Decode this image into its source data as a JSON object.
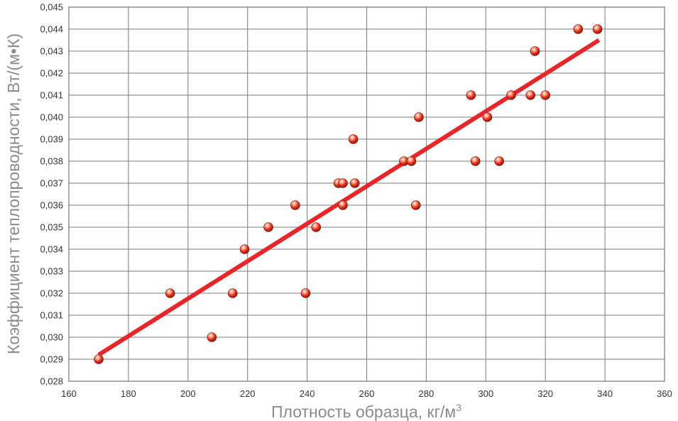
{
  "chart_data": {
    "type": "scatter",
    "xlabel": "Плотность образца, кг/м",
    "xlabel_sup": "3",
    "ylabel": "Коэффициент теплопроводности, Вт/(м•К)",
    "xlim": [
      160,
      360
    ],
    "ylim": [
      0.028,
      0.045
    ],
    "x_ticks": [
      160,
      180,
      200,
      220,
      240,
      260,
      280,
      300,
      320,
      340,
      360
    ],
    "x_tick_labels": [
      "160",
      "180",
      "200",
      "220",
      "240",
      "260",
      "280",
      "300",
      "320",
      "340",
      "360"
    ],
    "y_ticks": [
      0.028,
      0.029,
      0.03,
      0.031,
      0.032,
      0.033,
      0.034,
      0.035,
      0.036,
      0.037,
      0.038,
      0.039,
      0.04,
      0.041,
      0.042,
      0.043,
      0.044,
      0.045
    ],
    "y_tick_labels": [
      "0,028",
      "0,029",
      "0,030",
      "0,031",
      "0,032",
      "0,033",
      "0,034",
      "0,035",
      "0,036",
      "0,037",
      "0,038",
      "0,039",
      "0,040",
      "0,041",
      "0,042",
      "0,043",
      "0,044",
      "0,045"
    ],
    "grid": true,
    "points": [
      {
        "x": 170,
        "y": 0.029
      },
      {
        "x": 194,
        "y": 0.032
      },
      {
        "x": 208,
        "y": 0.03
      },
      {
        "x": 215,
        "y": 0.032
      },
      {
        "x": 219,
        "y": 0.034
      },
      {
        "x": 227,
        "y": 0.035
      },
      {
        "x": 236,
        "y": 0.036
      },
      {
        "x": 239.5,
        "y": 0.032
      },
      {
        "x": 243,
        "y": 0.035
      },
      {
        "x": 250.5,
        "y": 0.037
      },
      {
        "x": 252,
        "y": 0.037
      },
      {
        "x": 252,
        "y": 0.036
      },
      {
        "x": 255.5,
        "y": 0.039
      },
      {
        "x": 256,
        "y": 0.037
      },
      {
        "x": 272.5,
        "y": 0.038
      },
      {
        "x": 275,
        "y": 0.038
      },
      {
        "x": 276.5,
        "y": 0.036
      },
      {
        "x": 277.5,
        "y": 0.04
      },
      {
        "x": 295,
        "y": 0.041
      },
      {
        "x": 296.5,
        "y": 0.038
      },
      {
        "x": 300.5,
        "y": 0.04
      },
      {
        "x": 304.5,
        "y": 0.038
      },
      {
        "x": 308.5,
        "y": 0.041
      },
      {
        "x": 315,
        "y": 0.041
      },
      {
        "x": 316.5,
        "y": 0.043
      },
      {
        "x": 320,
        "y": 0.041
      },
      {
        "x": 331,
        "y": 0.044
      },
      {
        "x": 337.5,
        "y": 0.044
      }
    ],
    "trendline": {
      "x": [
        170,
        338
      ],
      "y": [
        0.0292,
        0.0435
      ]
    },
    "colors": {
      "marker": "#e8321e",
      "trendline": "#e8262a",
      "grid": "#7a7a7a"
    }
  }
}
